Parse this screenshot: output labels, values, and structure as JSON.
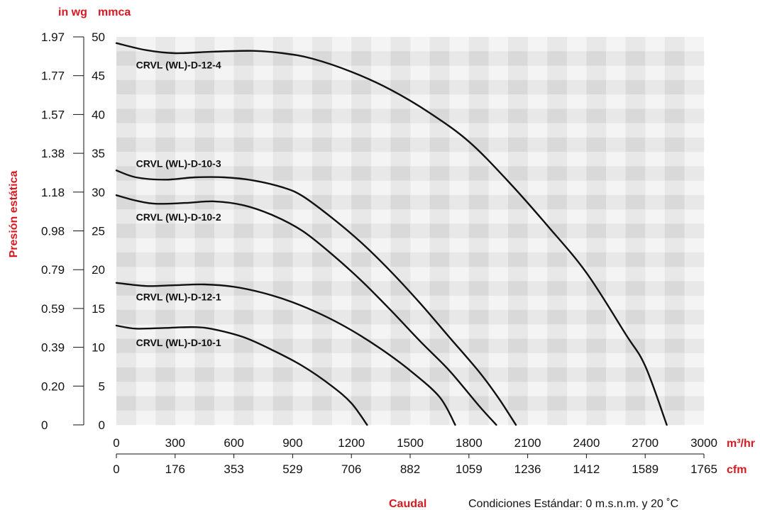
{
  "chart_data": {
    "type": "line",
    "ylabel": "Presión estática",
    "xlabel": "Caudal",
    "note": "Condiciones Estándar: 0 m.s.n.m. y 20 ˚C",
    "y_units": {
      "secondary": "in wg",
      "primary": "mmca"
    },
    "x_units": {
      "primary": "m³/hr",
      "secondary": "cfm"
    },
    "ylim": [
      0,
      50
    ],
    "xlim": [
      0,
      3000
    ],
    "yticks_mmca": [
      "0",
      "5",
      "10",
      "15",
      "20",
      "25",
      "30",
      "35",
      "40",
      "45",
      "50"
    ],
    "yticks_inwg": [
      "0",
      "0.20",
      "0.39",
      "0.59",
      "0.79",
      "0.98",
      "1.18",
      "1.38",
      "1.57",
      "1.77",
      "1.97"
    ],
    "xticks_m3hr": [
      "0",
      "300",
      "600",
      "900",
      "1200",
      "1500",
      "1800",
      "2100",
      "2400",
      "2700",
      "3000"
    ],
    "xticks_cfm": [
      "0",
      "176",
      "353",
      "529",
      "706",
      "882",
      "1059",
      "1236",
      "1412",
      "1589",
      "1765"
    ],
    "grid": true,
    "series": [
      {
        "name": "CRVL (WL)-D-12-4",
        "label_at": [
          100,
          46.4
        ],
        "points": [
          [
            0,
            49.2
          ],
          [
            150,
            48.3
          ],
          [
            300,
            47.9
          ],
          [
            500,
            48.1
          ],
          [
            700,
            48.2
          ],
          [
            850,
            47.9
          ],
          [
            1000,
            47.2
          ],
          [
            1200,
            45.5
          ],
          [
            1400,
            43.2
          ],
          [
            1600,
            40.2
          ],
          [
            1800,
            36.5
          ],
          [
            2000,
            31.4
          ],
          [
            2200,
            25.7
          ],
          [
            2400,
            19.6
          ],
          [
            2600,
            11.7
          ],
          [
            2700,
            7.6
          ],
          [
            2810,
            0
          ]
        ]
      },
      {
        "name": "CRVL (WL)-D-10-3",
        "label_at": [
          100,
          33.7
        ],
        "points": [
          [
            0,
            32.8
          ],
          [
            100,
            31.9
          ],
          [
            250,
            31.6
          ],
          [
            400,
            31.9
          ],
          [
            550,
            31.9
          ],
          [
            700,
            31.5
          ],
          [
            850,
            30.6
          ],
          [
            950,
            29.5
          ],
          [
            1100,
            26.7
          ],
          [
            1250,
            23.5
          ],
          [
            1400,
            19.8
          ],
          [
            1550,
            15.7
          ],
          [
            1700,
            11.3
          ],
          [
            1850,
            6.9
          ],
          [
            1950,
            3.5
          ],
          [
            2040,
            0
          ]
        ]
      },
      {
        "name": "CRVL (WL)-D-10-2",
        "label_at": [
          100,
          26.8
        ],
        "points": [
          [
            0,
            29.6
          ],
          [
            100,
            28.9
          ],
          [
            200,
            28.5
          ],
          [
            350,
            28.6
          ],
          [
            500,
            28.8
          ],
          [
            650,
            28.3
          ],
          [
            800,
            27.0
          ],
          [
            950,
            25.0
          ],
          [
            1100,
            22.0
          ],
          [
            1250,
            18.6
          ],
          [
            1400,
            14.8
          ],
          [
            1550,
            10.8
          ],
          [
            1700,
            7.0
          ],
          [
            1850,
            2.5
          ],
          [
            1940,
            0
          ]
        ]
      },
      {
        "name": "CRVL (WL)-D-12-1",
        "label_at": [
          100,
          16.5
        ],
        "points": [
          [
            0,
            18.3
          ],
          [
            150,
            17.9
          ],
          [
            300,
            18.0
          ],
          [
            450,
            18.1
          ],
          [
            600,
            17.8
          ],
          [
            750,
            17.0
          ],
          [
            900,
            15.8
          ],
          [
            1050,
            14.2
          ],
          [
            1200,
            12.2
          ],
          [
            1350,
            9.8
          ],
          [
            1500,
            7.0
          ],
          [
            1650,
            3.6
          ],
          [
            1730,
            0
          ]
        ]
      },
      {
        "name": "CRVL (WL)-D-10-1",
        "label_at": [
          100,
          10.6
        ],
        "points": [
          [
            0,
            12.8
          ],
          [
            100,
            12.4
          ],
          [
            250,
            12.5
          ],
          [
            400,
            12.6
          ],
          [
            500,
            12.3
          ],
          [
            650,
            11.3
          ],
          [
            800,
            9.6
          ],
          [
            950,
            7.6
          ],
          [
            1100,
            5.0
          ],
          [
            1200,
            2.8
          ],
          [
            1280,
            0
          ]
        ]
      }
    ]
  }
}
